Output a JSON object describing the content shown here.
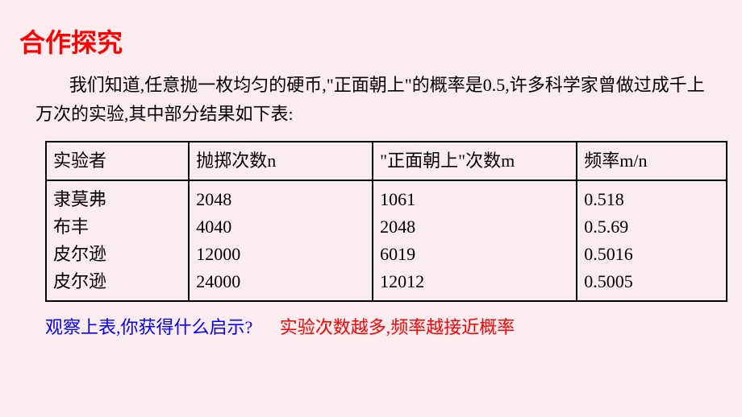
{
  "background_color": "#fbecf0",
  "title": {
    "text": "合作探究",
    "color": "#ff0000",
    "fontsize": 32
  },
  "intro": {
    "text": "我们知道,任意抛一枚均匀的硬币,\"正面朝上\"的概率是0.5,许多科学家曾做过成千上万次的实验,其中部分结果如下表:",
    "color": "#000000",
    "fontsize": 22
  },
  "table": {
    "border_color": "#000000",
    "text_color": "#000000",
    "fontsize": 22,
    "columns": [
      {
        "label": "实验者"
      },
      {
        "label": "抛掷次数n"
      },
      {
        "label": "\"正面朝上\"次数m"
      },
      {
        "label": "频率m/n"
      }
    ],
    "rows": [
      {
        "name": "隶莫弗",
        "n": "2048",
        "m": "1061",
        "freq": "0.518"
      },
      {
        "name": "布丰",
        "n": "4040",
        "m": "2048",
        "freq": "0.5.69"
      },
      {
        "name": "皮尔逊",
        "n": "12000",
        "m": "6019",
        "freq": "0.5016"
      },
      {
        "name": "皮尔逊",
        "n": "24000",
        "m": "12012",
        "freq": "0.5005"
      }
    ]
  },
  "footer": {
    "question": {
      "text": "观察上表,你获得什么启示?",
      "color": "#0000ff"
    },
    "answer": {
      "text": "实验次数越多,频率越接近概率",
      "color": "#ff0000"
    },
    "fontsize": 22
  }
}
